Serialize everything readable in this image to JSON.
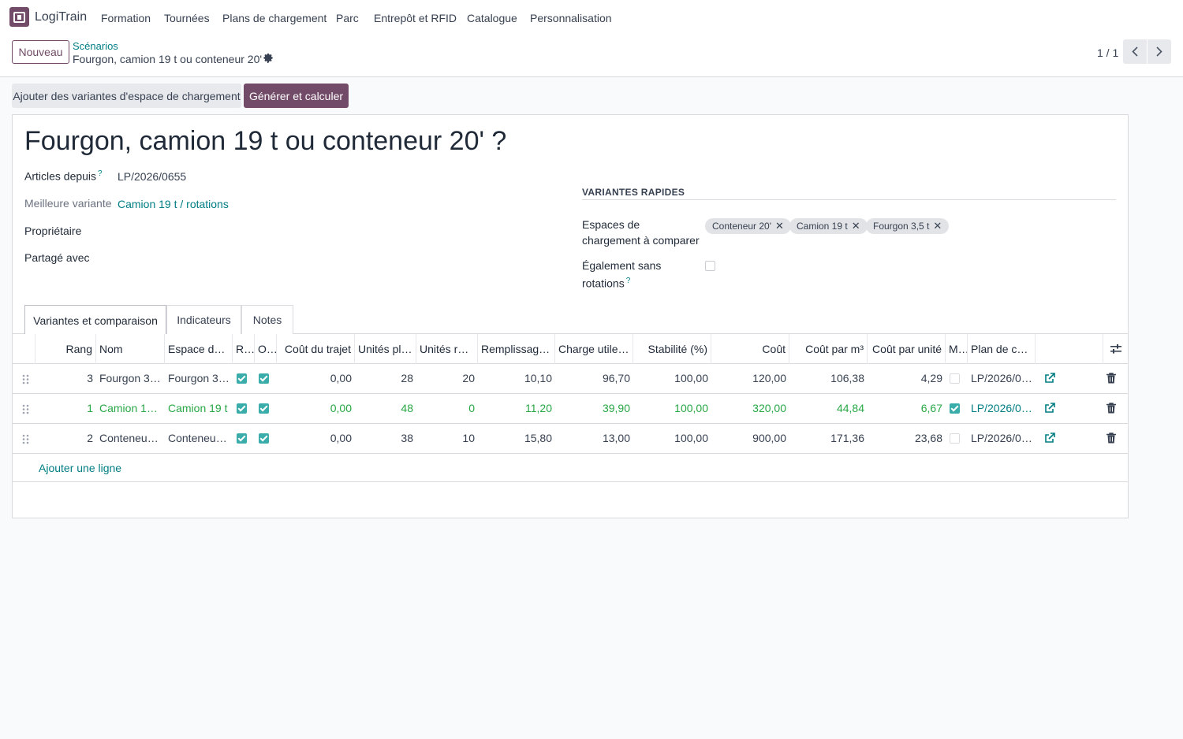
{
  "app": {
    "name": "LogiTrain"
  },
  "menu": [
    "Formation",
    "Tournées",
    "Plans de chargement",
    "Parc",
    "Entrepôt et RFID",
    "Catalogue",
    "Personnalisation"
  ],
  "control": {
    "new_label": "Nouveau",
    "breadcrumb_parent": "Scénarios",
    "breadcrumb_current": "Fourgon, camion 19 t ou conteneur 20' ?",
    "pager": "1 / 1"
  },
  "actions": {
    "add_variants": "Ajouter des variantes d'espace de chargement",
    "generate": "Générer et calculer"
  },
  "form": {
    "title": "Fourgon, camion 19 t ou conteneur 20' ?",
    "articles_label": "Articles depuis",
    "articles_value": "LP/2026/0655",
    "best_label": "Meilleure variante",
    "best_value": "Camion 19 t / rotations",
    "owner_label": "Propriétaire",
    "shared_label": "Partagé avec",
    "quick_title": "VARIANTES RAPIDES",
    "spaces_label_1": "Espaces de",
    "spaces_label_2": "chargement à comparer",
    "tags": [
      "Conteneur 20'",
      "Camion 19 t",
      "Fourgon 3,5 t"
    ],
    "no_rot_label_1": "Également sans",
    "no_rot_label_2": "rotations",
    "no_rot_checked": false
  },
  "tabs": [
    "Variantes et comparaison",
    "Indicateurs",
    "Notes"
  ],
  "table": {
    "headers": [
      "Rang",
      "Nom",
      "Espace de…",
      "R…",
      "O…",
      "Coût du trajet",
      "Unités pl…",
      "Unités re…",
      "Remplissag…",
      "Charge utile …",
      "Stabilité (%)",
      "Coût",
      "Coût par m³",
      "Coût par unité",
      "M…",
      "Plan de ch…"
    ],
    "rows": [
      {
        "rang": "3",
        "nom": "Fourgon 3,…",
        "espace": "Fourgon 3,…",
        "r": true,
        "o": true,
        "cout_trajet": "0,00",
        "unites_pl": "28",
        "unites_re": "20",
        "remplissage": "10,10",
        "charge": "96,70",
        "stabilite": "100,00",
        "cout": "120,00",
        "cout_m3": "106,38",
        "cout_unite": "4,29",
        "m": false,
        "plan": "LP/2026/0…",
        "best": false
      },
      {
        "rang": "1",
        "nom": "Camion 19…",
        "espace": "Camion 19 t",
        "r": true,
        "o": true,
        "cout_trajet": "0,00",
        "unites_pl": "48",
        "unites_re": "0",
        "remplissage": "11,20",
        "charge": "39,90",
        "stabilite": "100,00",
        "cout": "320,00",
        "cout_m3": "44,84",
        "cout_unite": "6,67",
        "m": true,
        "plan": "LP/2026/0…",
        "best": true
      },
      {
        "rang": "2",
        "nom": "Conteneur…",
        "espace": "Conteneur…",
        "r": true,
        "o": true,
        "cout_trajet": "0,00",
        "unites_pl": "38",
        "unites_re": "10",
        "remplissage": "15,80",
        "charge": "13,00",
        "stabilite": "100,00",
        "cout": "900,00",
        "cout_m3": "171,36",
        "cout_unite": "23,68",
        "m": false,
        "plan": "LP/2026/0…",
        "best": false
      }
    ],
    "add_line": "Ajouter une ligne"
  },
  "colors": {
    "brand": "#714b67",
    "link": "#017e84",
    "best_row": "#28a745",
    "checkbox": "#3aadaa"
  }
}
